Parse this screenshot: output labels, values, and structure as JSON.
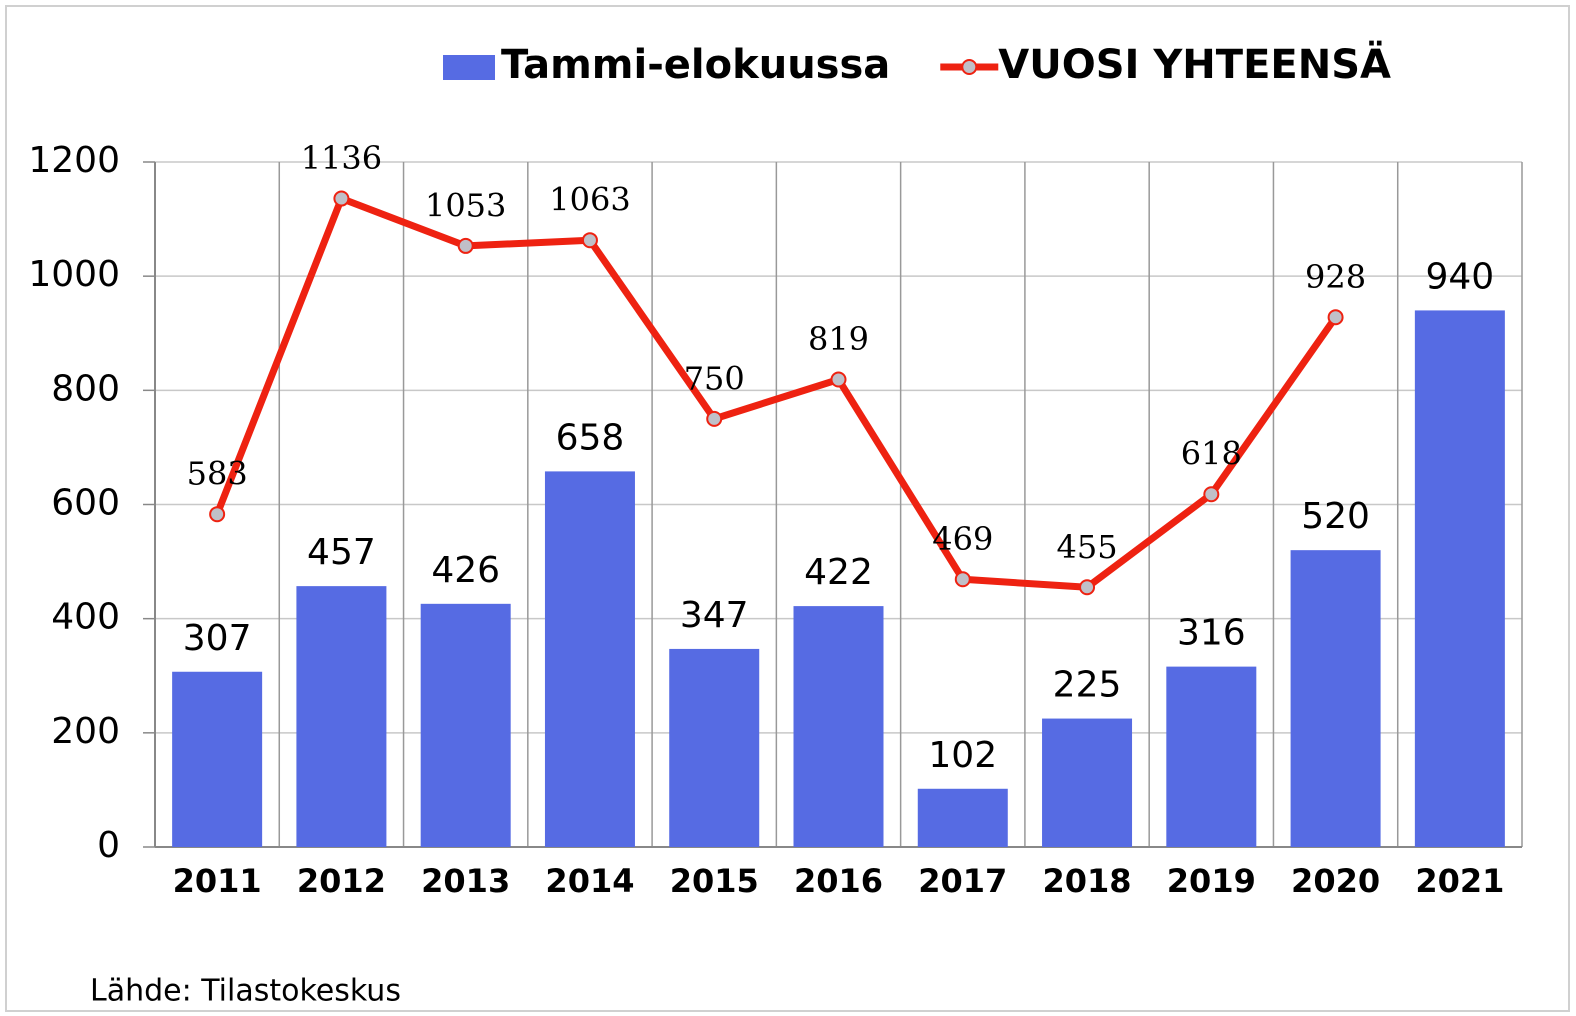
{
  "chart_data": {
    "type": "bar",
    "categories": [
      "2011",
      "2012",
      "2013",
      "2014",
      "2015",
      "2016",
      "2017",
      "2018",
      "2019",
      "2020",
      "2021"
    ],
    "series": [
      {
        "name": "Tammi-elokuussa",
        "type": "bar",
        "color": "#566be3",
        "values": [
          307,
          457,
          426,
          658,
          347,
          422,
          102,
          225,
          316,
          520,
          940
        ]
      },
      {
        "name": "VUOSI YHTEENSÄ",
        "type": "line",
        "color": "#ee2211",
        "values": [
          583,
          1136,
          1053,
          1063,
          750,
          819,
          469,
          455,
          618,
          928,
          null
        ]
      }
    ],
    "ylim": [
      0,
      1200
    ],
    "yticks": [
      0,
      200,
      400,
      600,
      800,
      1000,
      1200
    ],
    "grid": true,
    "source": "Lähde: Tilastokeskus"
  }
}
